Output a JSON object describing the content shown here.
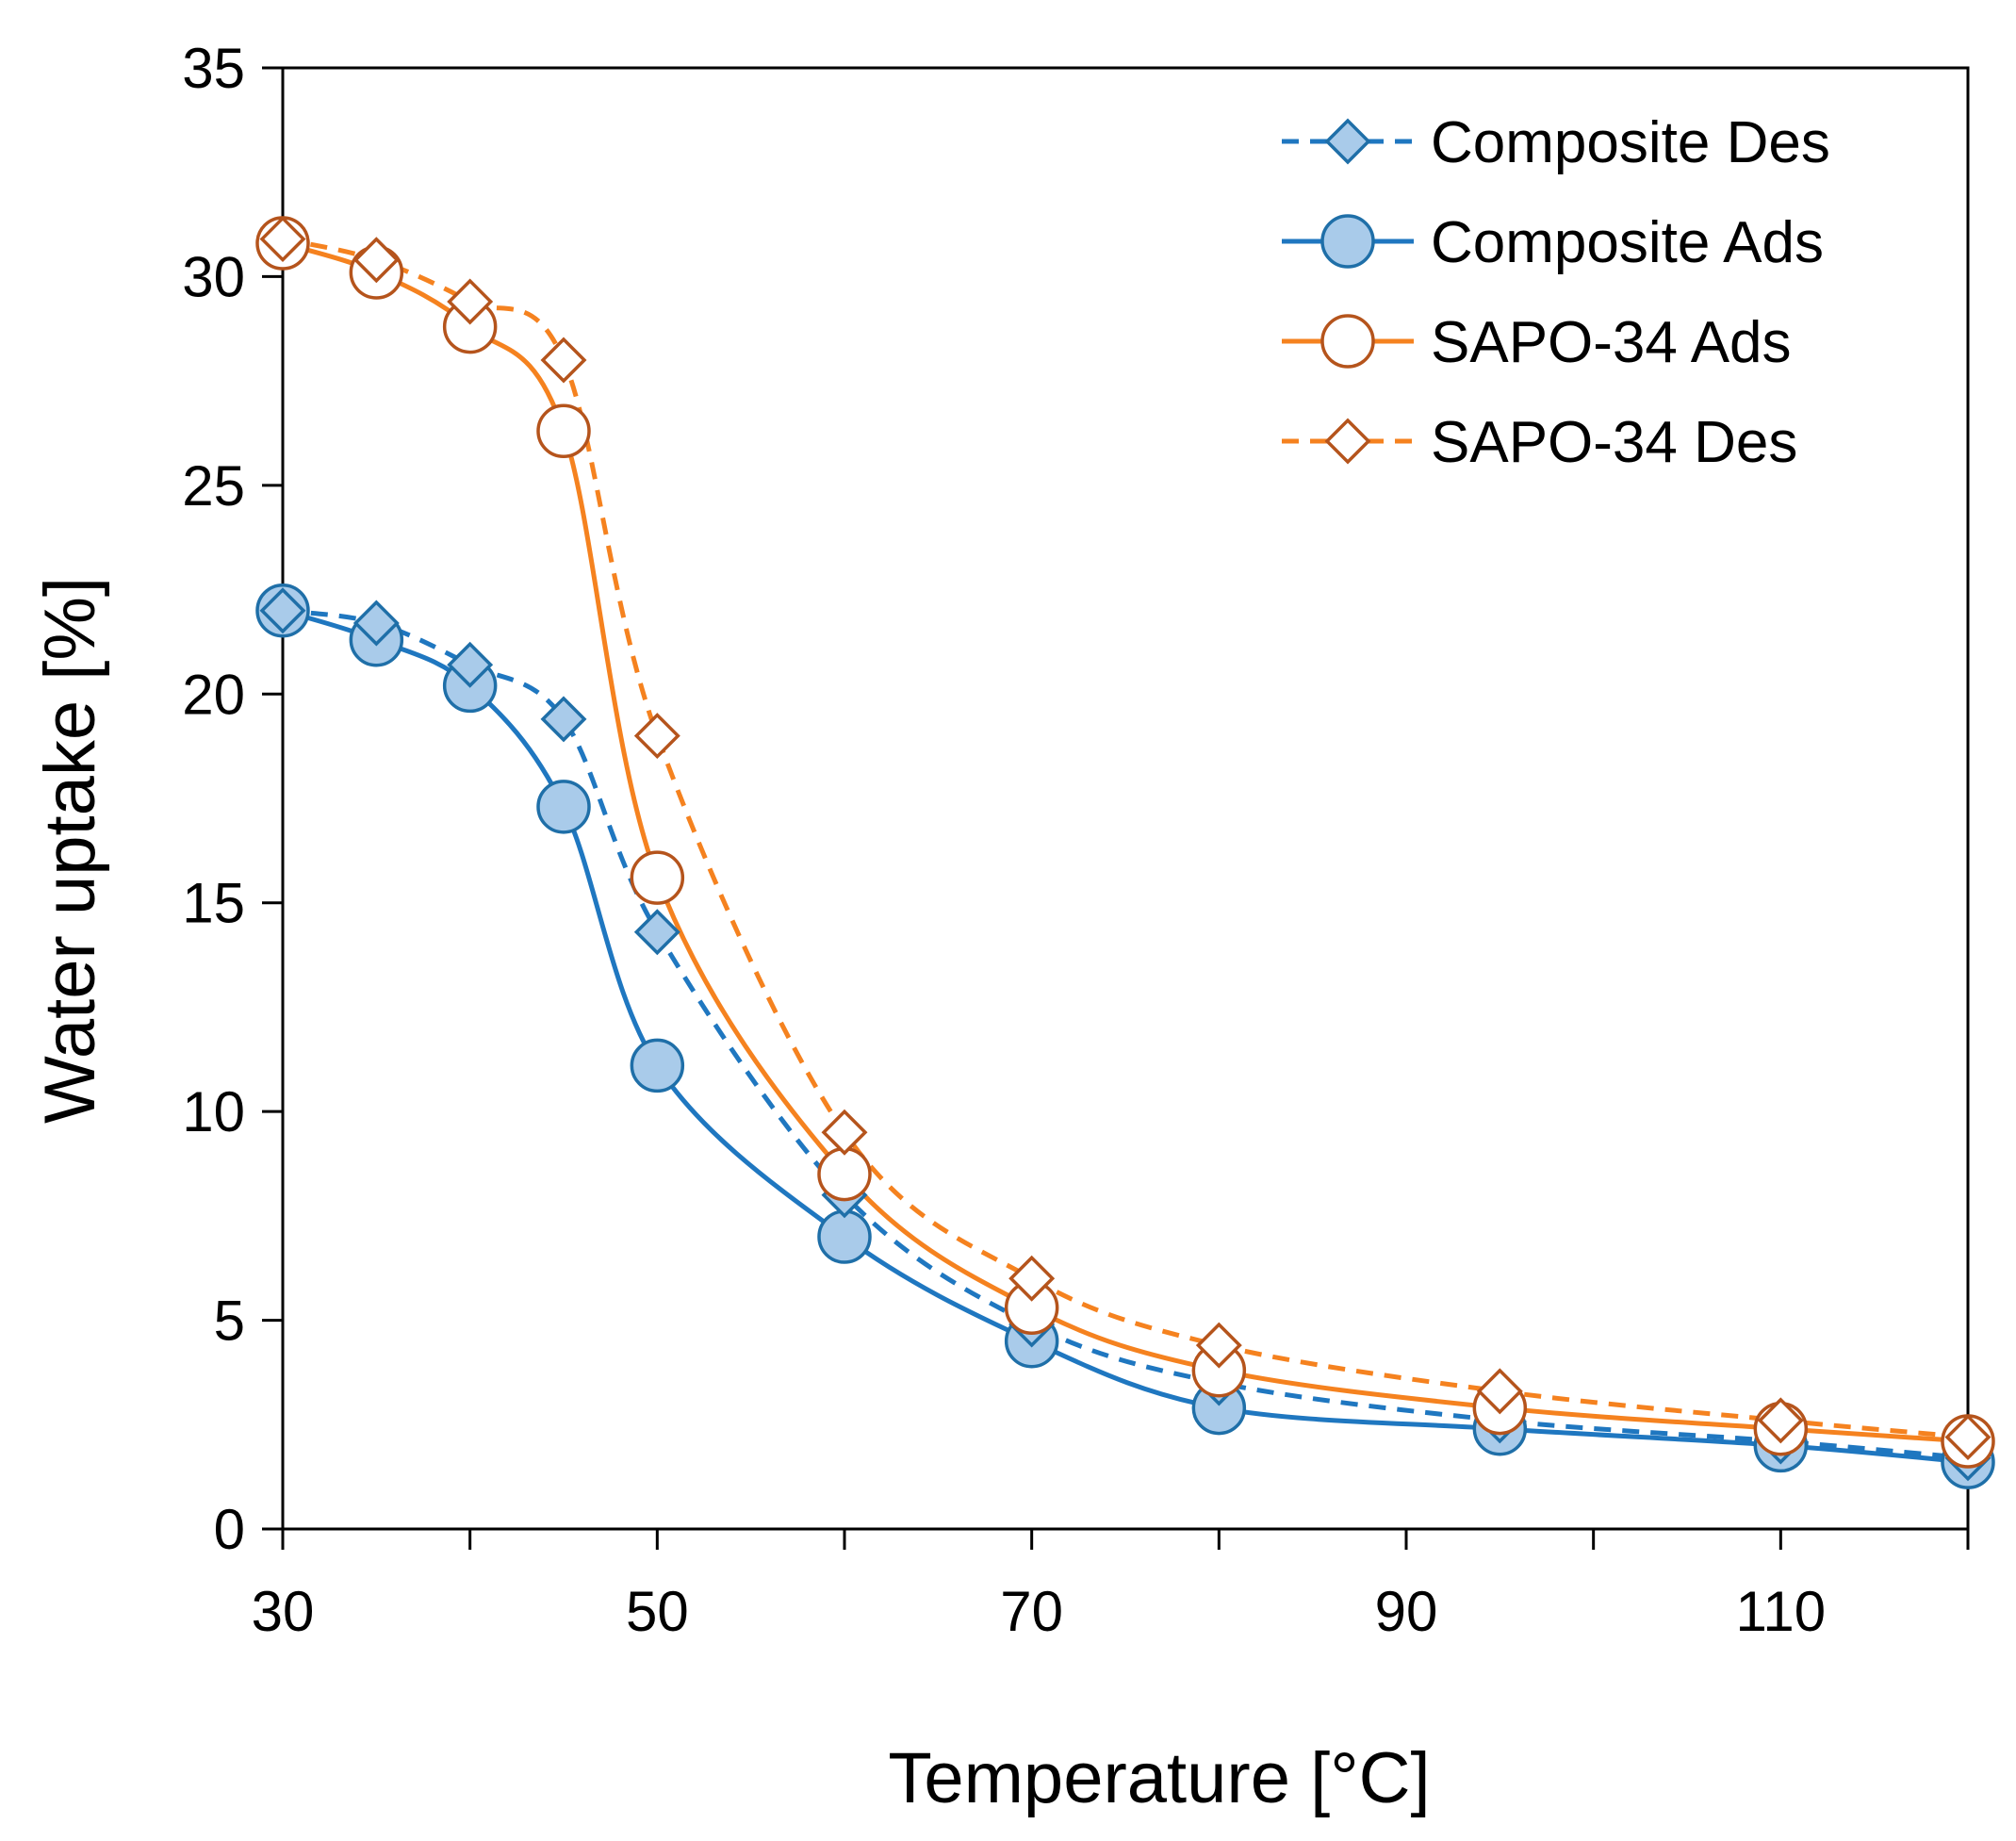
{
  "chart_data": {
    "type": "line",
    "title": "",
    "xlabel": "Temperature [°C]",
    "ylabel": "Water uptake [%]",
    "xlim": [
      30,
      120
    ],
    "ylim": [
      0,
      35
    ],
    "xticks": [
      30,
      50,
      70,
      90,
      110
    ],
    "yticks": [
      0,
      5,
      10,
      15,
      20,
      25,
      30,
      35
    ],
    "grid": false,
    "legend_position": "top-right",
    "series": [
      {
        "name": "Composite Des",
        "color": "#1f77c0",
        "marker_edge": "#1f6fa8",
        "marker_fill": "#a9cbea",
        "line_style": "dashed",
        "marker": "diamond",
        "x": [
          30,
          35,
          40,
          45,
          50,
          60,
          70,
          80,
          95,
          110,
          120
        ],
        "y": [
          22.0,
          21.7,
          20.7,
          19.4,
          14.3,
          8.0,
          4.9,
          3.5,
          2.6,
          2.1,
          1.7
        ]
      },
      {
        "name": "Composite Ads",
        "color": "#1f77c0",
        "marker_edge": "#1f6fa8",
        "marker_fill": "#a9cbea",
        "line_style": "solid",
        "marker": "circle",
        "x": [
          30,
          35,
          40,
          45,
          50,
          60,
          70,
          80,
          95,
          110,
          120
        ],
        "y": [
          22.0,
          21.3,
          20.2,
          17.3,
          11.1,
          7.0,
          4.5,
          2.9,
          2.4,
          2.0,
          1.6
        ]
      },
      {
        "name": "SAPO-34 Ads",
        "color": "#f5821f",
        "marker_edge": "#b5541c",
        "marker_fill": "#ffffff",
        "line_style": "solid",
        "marker": "circle",
        "x": [
          30,
          35,
          40,
          45,
          50,
          60,
          70,
          80,
          95,
          110,
          120
        ],
        "y": [
          30.8,
          30.1,
          28.8,
          26.3,
          15.6,
          8.5,
          5.3,
          3.8,
          2.9,
          2.4,
          2.1
        ]
      },
      {
        "name": "SAPO-34 Des",
        "color": "#f5821f",
        "marker_edge": "#b5541c",
        "marker_fill": "#ffffff",
        "line_style": "dashed",
        "marker": "diamond",
        "x": [
          30,
          35,
          40,
          45,
          50,
          60,
          70,
          80,
          95,
          110,
          120
        ],
        "y": [
          30.9,
          30.4,
          29.4,
          28.0,
          19.0,
          9.5,
          6.0,
          4.4,
          3.3,
          2.6,
          2.2
        ]
      }
    ]
  }
}
